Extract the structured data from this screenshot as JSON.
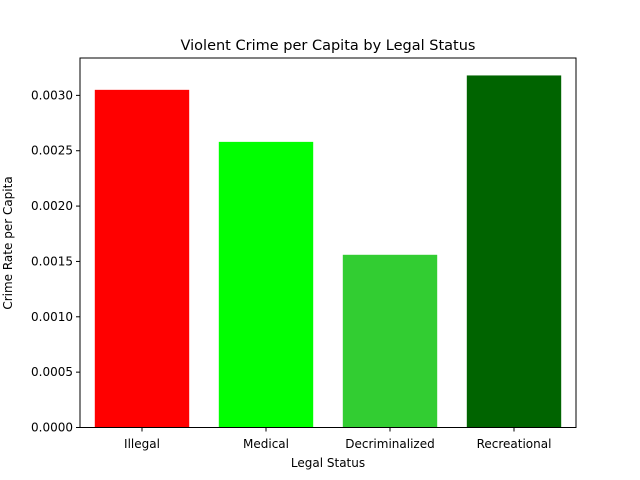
{
  "chart_data": {
    "type": "bar",
    "title": "Violent Crime per Capita by Legal Status",
    "xlabel": "Legal Status",
    "ylabel": "Crime Rate per Capita",
    "categories": [
      "Illegal",
      "Medical",
      "Decriminalized",
      "Recreational"
    ],
    "values": [
      0.00305,
      0.00258,
      0.00156,
      0.00318
    ],
    "colors": [
      "#ff0000",
      "#00ff00",
      "#32cd32",
      "#006400"
    ],
    "ylim": [
      0,
      0.0033376
    ],
    "yticks": [
      "0.0000",
      "0.0005",
      "0.0010",
      "0.0015",
      "0.0020",
      "0.0025",
      "0.0030"
    ],
    "grid": false,
    "legend": "none"
  }
}
